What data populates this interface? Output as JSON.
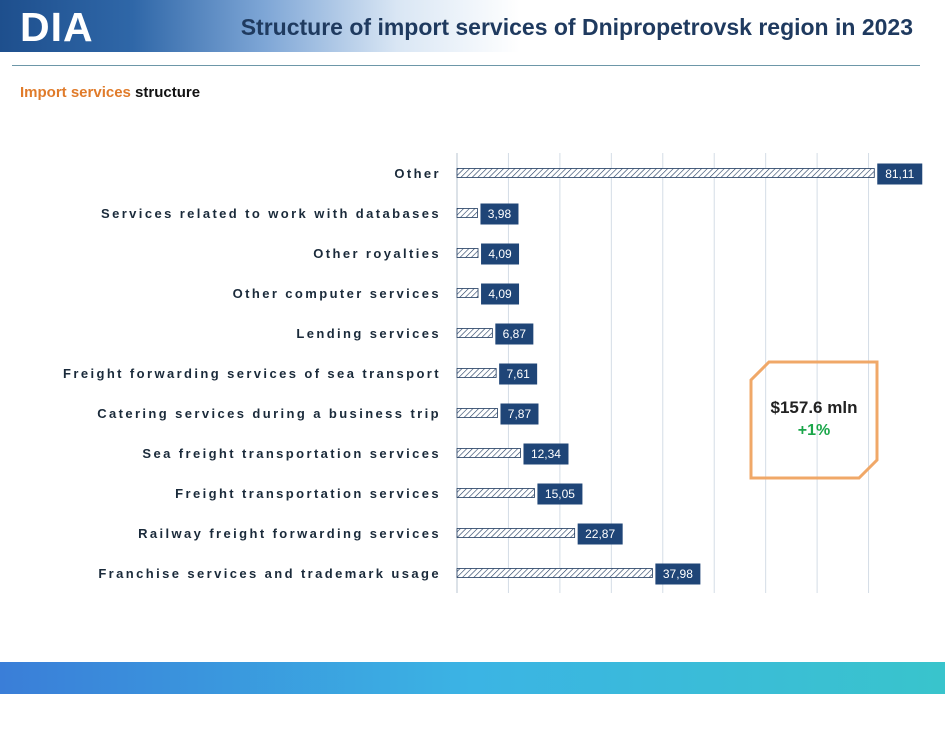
{
  "header": {
    "logo": "DIA",
    "title": "Structure of import services of Dnipropetrovsk region in 2023"
  },
  "subtitle": {
    "accent": "Import services",
    "rest": " structure"
  },
  "callout": {
    "amount": "$157.6 mln",
    "change": "+1%"
  },
  "colors": {
    "bar_stroke": "#1f3a5f",
    "label_bg": "#1f4577",
    "callout_border": "#f0a868",
    "change_green": "#1aa64a",
    "accent_orange": "#e07b2a"
  },
  "chart_data": {
    "type": "bar",
    "orientation": "horizontal",
    "categories": [
      "Other",
      "Services related to work with databases",
      "Other royalties",
      "Other computer services",
      "Lending services",
      "Freight forwarding services of sea transport",
      "Catering services during a business trip",
      "Sea freight transportation services",
      "Freight transportation services",
      "Railway freight forwarding services",
      "Franchise services and trademark usage"
    ],
    "values": [
      81.11,
      3.98,
      4.09,
      4.09,
      6.87,
      7.61,
      7.87,
      12.34,
      15.05,
      22.87,
      37.98
    ],
    "value_labels": [
      "81,11",
      "3,98",
      "4,09",
      "4,09",
      "6,87",
      "7,61",
      "7,87",
      "12,34",
      "15,05",
      "22,87",
      "37,98"
    ],
    "xlim": [
      0,
      90
    ],
    "grid": true,
    "grid_step": 10,
    "bar_fill": "hatched"
  }
}
